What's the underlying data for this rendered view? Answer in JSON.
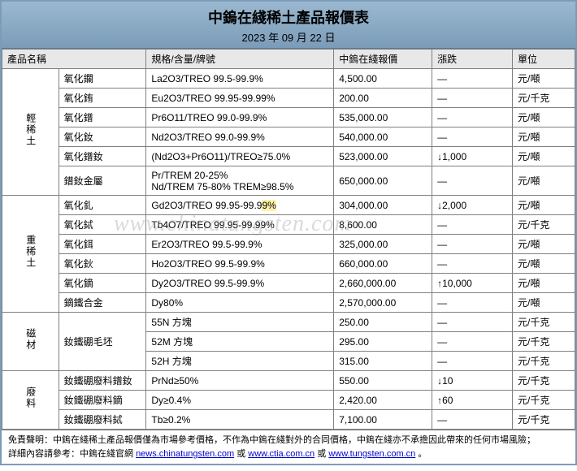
{
  "header": {
    "title": "中鎢在綫稀土產品報價表",
    "date": "2023 年 09 月 22 日"
  },
  "columns": [
    "產品名稱",
    "規格/含量/牌號",
    "中鎢在綫報價",
    "漲跌",
    "單位"
  ],
  "categories": [
    {
      "label": "輕稀土",
      "rows": [
        {
          "name": "氧化鑭",
          "spec": "La2O3/TREO 99.5-99.9%",
          "price": "4,500.00",
          "change": "—",
          "unit": "元/噸"
        },
        {
          "name": "氧化銪",
          "spec": "Eu2O3/TREO 99.95-99.99%",
          "price": "200.00",
          "change": "—",
          "unit": "元/千克"
        },
        {
          "name": "氧化鐠",
          "spec": "Pr6O11/TREO 99.0-99.9%",
          "price": "535,000.00",
          "change": "—",
          "unit": "元/噸"
        },
        {
          "name": "氧化釹",
          "spec": "Nd2O3/TREO 99.0-99.9%",
          "price": "540,000.00",
          "change": "—",
          "unit": "元/噸"
        },
        {
          "name": "氧化鐠釹",
          "spec": "(Nd2O3+Pr6O11)/TREO≥75.0%",
          "price": "523,000.00",
          "change": "↓1,000",
          "unit": "元/噸"
        },
        {
          "name": "鐠釹金屬",
          "spec": "Pr/TREM 20-25%\nNd/TREM 75-80% TREM≥98.5%",
          "price": "650,000.00",
          "change": "—",
          "unit": "元/噸",
          "tall": true
        }
      ]
    },
    {
      "label": "重稀土",
      "rows": [
        {
          "name": "氧化釓",
          "spec": "Gd2O3/TREO 99.95-99.99%",
          "price": "304,000.00",
          "change": "↓2,000",
          "unit": "元/噸",
          "hl": true
        },
        {
          "name": "氧化鋱",
          "spec": "Tb4O7/TREO 99.95-99.99%",
          "price": "8,600.00",
          "change": "—",
          "unit": "元/千克"
        },
        {
          "name": "氧化鉺",
          "spec": "Er2O3/TREO 99.5-99.9%",
          "price": "325,000.00",
          "change": "—",
          "unit": "元/噸"
        },
        {
          "name": "氧化鈥",
          "spec": "Ho2O3/TREO 99.5-99.9%",
          "price": "660,000.00",
          "change": "—",
          "unit": "元/噸"
        },
        {
          "name": "氧化鏑",
          "spec": "Dy2O3/TREO 99.5-99.9%",
          "price": "2,660,000.00",
          "change": "↑10,000",
          "unit": "元/噸"
        },
        {
          "name": "鏑鐵合金",
          "spec": "Dy80%",
          "price": "2,570,000.00",
          "change": "—",
          "unit": "元/噸"
        }
      ]
    },
    {
      "label": "磁材",
      "rows": [
        {
          "name": "釹鐵硼毛坯",
          "spec": "55N 方塊",
          "price": "250.00",
          "change": "—",
          "unit": "元/千克",
          "namerowspan": 3
        },
        {
          "spec": "52M 方塊",
          "price": "295.00",
          "change": "—",
          "unit": "元/千克"
        },
        {
          "spec": "52H 方塊",
          "price": "315.00",
          "change": "—",
          "unit": "元/千克"
        }
      ]
    },
    {
      "label": "廢料",
      "rows": [
        {
          "name": "釹鐵硼廢料鐠釹",
          "spec": "PrNd≥50%",
          "price": "550.00",
          "change": "↓10",
          "unit": "元/千克"
        },
        {
          "name": "釹鐵硼廢料鏑",
          "spec": "Dy≥0.4%",
          "price": "2,420.00",
          "change": "↑60",
          "unit": "元/千克"
        },
        {
          "name": "釹鐵硼廢料鋱",
          "spec": "Tb≥0.2%",
          "price": "7,100.00",
          "change": "—",
          "unit": "元/千克"
        }
      ]
    }
  ],
  "footer": {
    "line1_prefix": "免責聲明：中鎢在綫稀土產品報價僅為市場參考價格，不作為中鎢在綫對外的合同價格，中鎢在綫亦不承擔因此帶來的任何市場風險；",
    "line2_prefix": "詳細內容請參考：中鎢在綫官網 ",
    "link1": "news.chinatungsten.com",
    "sep": " 或 ",
    "link2": "www.ctia.com.cn",
    "sep2": " 或 ",
    "link3": "www.tungsten.com.cn",
    "tail": "。"
  },
  "watermark": "www.chinatungsten.com",
  "colors": {
    "border": "#808080",
    "header_grad_top": "#9bb8d0",
    "header_grad_bot": "#7b9cb8",
    "highlight": "#fff2a8",
    "link": "#0000cc"
  }
}
